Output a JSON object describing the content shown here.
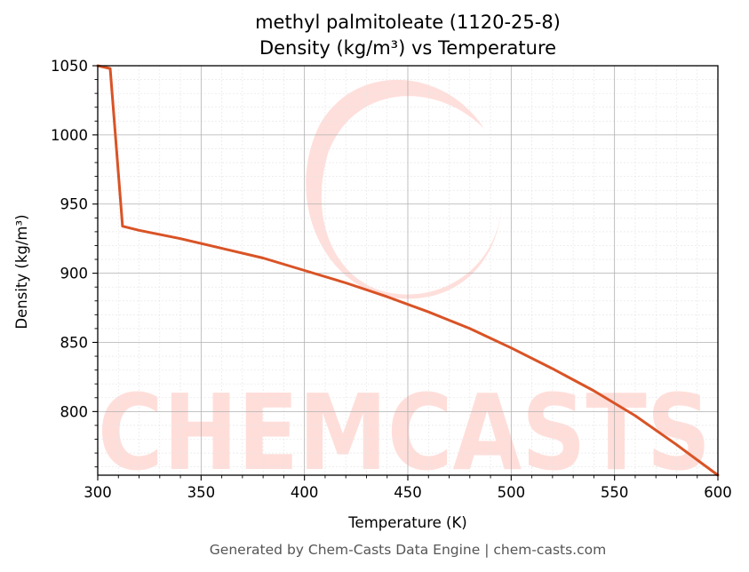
{
  "chart_data": {
    "type": "line",
    "title": "methyl palmitoleate (1120-25-8)",
    "subtitle": "Density (kg/m³) vs Temperature",
    "xlabel": "Temperature (K)",
    "ylabel": "Density (kg/m³)",
    "xlim": [
      300,
      600
    ],
    "ylim": [
      754,
      1050
    ],
    "x_ticks": [
      300,
      350,
      400,
      450,
      500,
      550,
      600
    ],
    "y_ticks": [
      800,
      850,
      900,
      950,
      1000,
      1050
    ],
    "grid": true,
    "legend": "none",
    "series": [
      {
        "color": "#d95326",
        "x": [
          300,
          306,
          312,
          320,
          340,
          360,
          380,
          400,
          420,
          440,
          460,
          480,
          500,
          520,
          540,
          560,
          580,
          600
        ],
        "y": [
          1050,
          1048,
          934,
          931,
          925,
          918,
          911,
          902,
          893,
          883,
          872,
          860,
          846,
          831,
          815,
          797,
          776,
          754
        ]
      }
    ]
  },
  "watermark": "CHEMCASTS",
  "footer": "Generated by Chem-Casts Data Engine | chem-casts.com"
}
